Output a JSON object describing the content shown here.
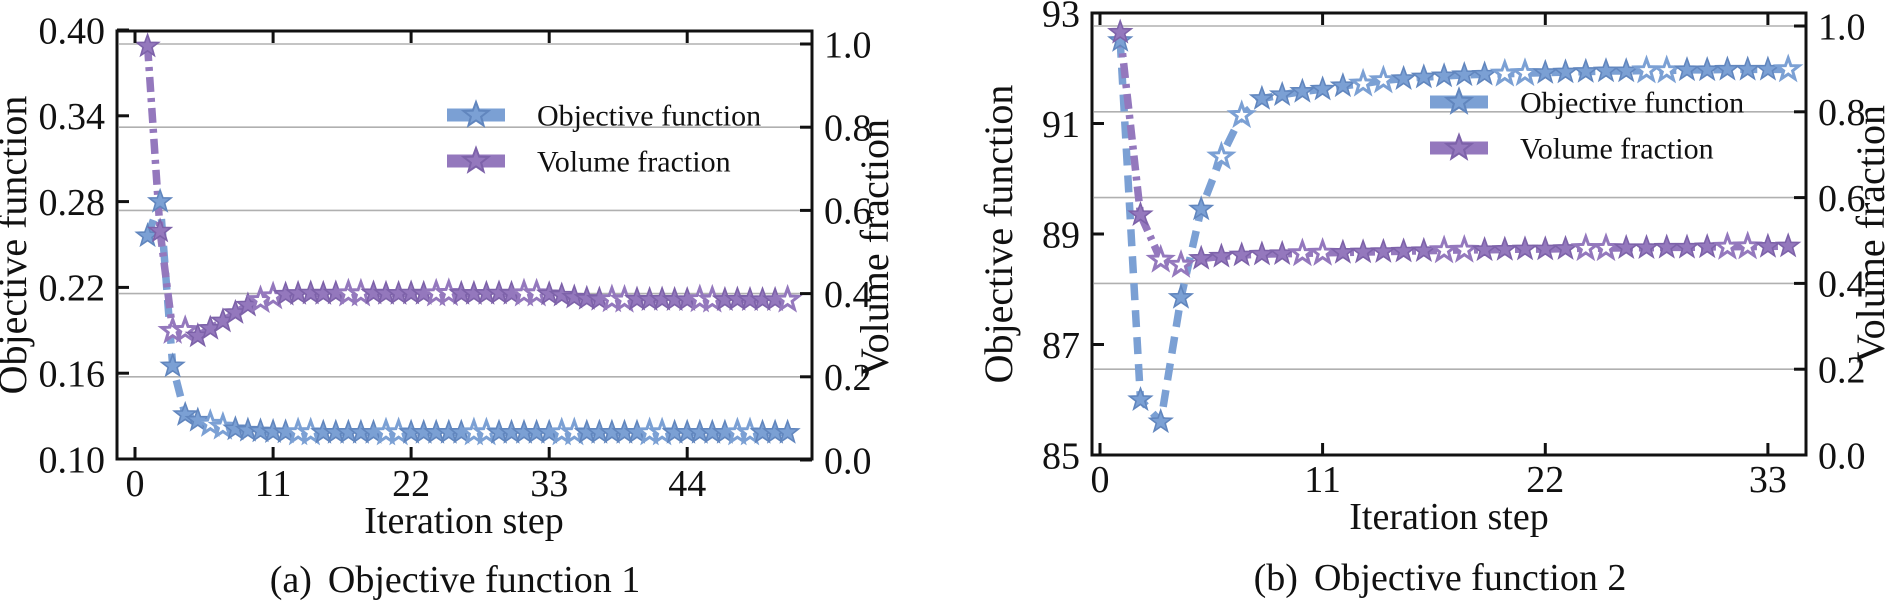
{
  "page": {
    "background": "#ffffff"
  },
  "styles": {
    "objective_color": "#7ba0d4",
    "objective_edge": "#6186be",
    "volume_color": "#9478bd",
    "volume_edge": "#7d62a9",
    "grid_color": "#b0b0b0",
    "axis_color": "#111111",
    "text_color": "#111111",
    "open_marker_fill": "#ffffff"
  },
  "chart_data": [
    {
      "type": "line",
      "caption_prefix": "(a)",
      "caption_title": "Objective function 1",
      "xlabel": "Iteration step",
      "ylabel_left": "Objective function",
      "ylabel_right": "Volume fraction",
      "grid": "horizontal-right-axis",
      "legend_position": "upper-center-right",
      "x_tick_labels": [
        "0",
        "11",
        "22",
        "33",
        "44"
      ],
      "x_tick_values": [
        0,
        11,
        22,
        33,
        44
      ],
      "xlim": [
        0,
        54
      ],
      "left_tick_labels": [
        "0.10",
        "0.16",
        "0.22",
        "0.28",
        "0.34",
        "0.40"
      ],
      "left_tick_values": [
        0.1,
        0.16,
        0.22,
        0.28,
        0.34,
        0.4
      ],
      "left_ylim": [
        0.1,
        0.4
      ],
      "right_tick_labels": [
        "0.0",
        "0.2",
        "0.4",
        "0.6",
        "0.8",
        "1.0"
      ],
      "right_tick_values": [
        0.0,
        0.2,
        0.4,
        0.6,
        0.8,
        1.0
      ],
      "right_ylim": [
        0.0,
        1.0
      ],
      "series": [
        {
          "name": "Objective function",
          "axis": "left",
          "line_style": "dashed",
          "marker": "star",
          "x": [
            1,
            2,
            3,
            4,
            5,
            6,
            7,
            8,
            9,
            10,
            11,
            12,
            13,
            14,
            15,
            16,
            17,
            18,
            19,
            20,
            21,
            22,
            23,
            24,
            25,
            26,
            27,
            28,
            29,
            30,
            31,
            32,
            33,
            34,
            35,
            36,
            37,
            38,
            39,
            40,
            41,
            42,
            43,
            44,
            45,
            46,
            47,
            48,
            49,
            50,
            51,
            52
          ],
          "y": [
            0.256,
            0.28,
            0.165,
            0.131,
            0.127,
            0.1245,
            0.1225,
            0.121,
            0.12,
            0.1195,
            0.119,
            0.1188,
            0.1186,
            0.1185,
            0.1185,
            0.1185,
            0.1185,
            0.1185,
            0.1185,
            0.1185,
            0.1185,
            0.1185,
            0.1185,
            0.1185,
            0.1185,
            0.1185,
            0.1185,
            0.1185,
            0.1185,
            0.1185,
            0.1185,
            0.1185,
            0.1185,
            0.1185,
            0.1185,
            0.1185,
            0.1185,
            0.1185,
            0.1185,
            0.1185,
            0.1185,
            0.1185,
            0.1185,
            0.1185,
            0.1185,
            0.1185,
            0.1185,
            0.1185,
            0.1185,
            0.1185,
            0.1185,
            0.1185
          ]
        },
        {
          "name": "Volume fraction",
          "axis": "right",
          "line_style": "dashdot",
          "marker": "star",
          "x": [
            1,
            2,
            3,
            4,
            5,
            6,
            7,
            8,
            9,
            10,
            11,
            12,
            13,
            14,
            15,
            16,
            17,
            18,
            19,
            20,
            21,
            22,
            23,
            24,
            25,
            26,
            27,
            28,
            29,
            30,
            31,
            32,
            33,
            34,
            35,
            36,
            37,
            38,
            39,
            40,
            41,
            42,
            43,
            44,
            45,
            46,
            47,
            48,
            49,
            50,
            51,
            52
          ],
          "y": [
            0.995,
            0.55,
            0.31,
            0.312,
            0.298,
            0.316,
            0.334,
            0.354,
            0.372,
            0.384,
            0.393,
            0.398,
            0.4,
            0.401,
            0.4,
            0.401,
            0.4,
            0.4,
            0.401,
            0.4,
            0.4,
            0.401,
            0.4,
            0.4,
            0.401,
            0.4,
            0.4,
            0.4,
            0.401,
            0.4,
            0.4,
            0.4,
            0.399,
            0.396,
            0.391,
            0.388,
            0.386,
            0.386,
            0.385,
            0.386,
            0.385,
            0.386,
            0.385,
            0.385,
            0.386,
            0.385,
            0.385,
            0.386,
            0.385,
            0.385,
            0.385,
            0.385
          ]
        }
      ]
    },
    {
      "type": "line",
      "caption_prefix": "(b)",
      "caption_title": "Objective function 2",
      "xlabel": "Iteration step",
      "ylabel_left": "Objective function",
      "ylabel_right": "Volume fraction",
      "grid": "horizontal-right-axis",
      "legend_position": "upper-center-right",
      "x_tick_labels": [
        "0",
        "11",
        "22",
        "33"
      ],
      "x_tick_values": [
        0,
        11,
        22,
        33
      ],
      "xlim": [
        0,
        35
      ],
      "left_tick_labels": [
        "85",
        "87",
        "89",
        "91",
        "93"
      ],
      "left_tick_values": [
        85,
        87,
        89,
        91,
        93
      ],
      "left_ylim": [
        85,
        93
      ],
      "right_tick_labels": [
        "0.0",
        "0.2",
        "0.4",
        "0.6",
        "0.8",
        "1.0"
      ],
      "right_tick_values": [
        0.0,
        0.2,
        0.4,
        0.6,
        0.8,
        1.0
      ],
      "right_ylim": [
        0.0,
        1.0
      ],
      "series": [
        {
          "name": "Objective function",
          "axis": "left",
          "line_style": "dashed",
          "marker": "star",
          "x": [
            1,
            2,
            3,
            4,
            5,
            6,
            7,
            8,
            9,
            10,
            11,
            12,
            13,
            14,
            15,
            16,
            17,
            18,
            19,
            20,
            21,
            22,
            23,
            24,
            25,
            26,
            27,
            28,
            29,
            30,
            31,
            32,
            33,
            34
          ],
          "y": [
            92.5,
            86.0,
            85.6,
            87.85,
            89.45,
            90.4,
            91.15,
            91.45,
            91.52,
            91.58,
            91.62,
            91.68,
            91.72,
            91.78,
            91.81,
            91.84,
            91.86,
            91.88,
            91.89,
            91.9,
            91.91,
            91.92,
            91.93,
            91.94,
            91.95,
            91.95,
            91.96,
            91.96,
            91.97,
            91.97,
            91.98,
            91.98,
            91.98,
            91.98
          ]
        },
        {
          "name": "Volume fraction",
          "axis": "right",
          "line_style": "dashdot",
          "marker": "star",
          "x": [
            1,
            2,
            3,
            4,
            5,
            6,
            7,
            8,
            9,
            10,
            11,
            12,
            13,
            14,
            15,
            16,
            17,
            18,
            19,
            20,
            21,
            22,
            23,
            24,
            25,
            26,
            27,
            28,
            29,
            30,
            31,
            32,
            33,
            34
          ],
          "y": [
            0.985,
            0.56,
            0.455,
            0.443,
            0.458,
            0.463,
            0.466,
            0.468,
            0.469,
            0.47,
            0.471,
            0.472,
            0.473,
            0.474,
            0.475,
            0.476,
            0.477,
            0.478,
            0.478,
            0.479,
            0.48,
            0.48,
            0.481,
            0.482,
            0.482,
            0.483,
            0.483,
            0.484,
            0.484,
            0.485,
            0.485,
            0.486,
            0.486,
            0.487
          ]
        }
      ]
    }
  ]
}
